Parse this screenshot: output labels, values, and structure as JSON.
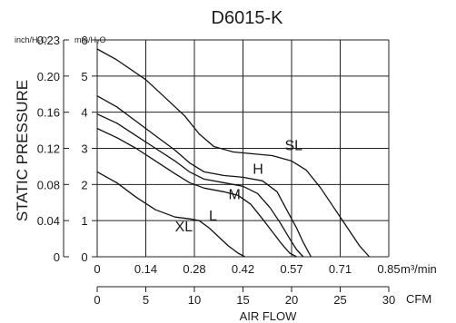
{
  "chart_data": {
    "type": "line",
    "title": "D6015-K",
    "xlabel": "AIR FLOW",
    "ylabel": "STATIC PRESSURE",
    "unit_inch": "inch/H₂O",
    "unit_mm": "mm/H₂O",
    "unit_m3": "m³/min",
    "unit_cfm": "CFM",
    "x_m3_ticks": [
      "0",
      "0.14",
      "0.28",
      "0.42",
      "0.57",
      "0.71",
      "0.85"
    ],
    "x_cfm_ticks": [
      "0",
      "5",
      "10",
      "15",
      "20",
      "25",
      "30"
    ],
    "y_mm_ticks": [
      "0",
      "1",
      "2",
      "3",
      "4",
      "5",
      "6"
    ],
    "y_inch_ticks": [
      "0",
      "0.04",
      "0.08",
      "0.12",
      "0.16",
      "0.20",
      "0.23"
    ],
    "xlim_cfm": [
      0,
      30
    ],
    "ylim_mm": [
      0,
      6
    ],
    "grid": true,
    "series": [
      {
        "name": "SL",
        "x": [
          0,
          2,
          5,
          7,
          9,
          10.5,
          12,
          14,
          16,
          18,
          20,
          21.5,
          23,
          24.5,
          26,
          27,
          28
        ],
        "y": [
          5.75,
          5.45,
          4.9,
          4.4,
          3.9,
          3.4,
          3.05,
          2.9,
          2.85,
          2.8,
          2.65,
          2.4,
          1.9,
          1.3,
          0.7,
          0.3,
          0
        ]
      },
      {
        "name": "H",
        "x": [
          0,
          2,
          4,
          6,
          8,
          9.5,
          11,
          13,
          15,
          17,
          18.5,
          19.5,
          20.5,
          21.2,
          22
        ],
        "y": [
          4.45,
          4.15,
          3.75,
          3.35,
          2.95,
          2.6,
          2.35,
          2.25,
          2.2,
          2.1,
          1.8,
          1.3,
          0.8,
          0.4,
          0
        ]
      },
      {
        "name": "M",
        "x": [
          0,
          2,
          4,
          6,
          8,
          9.5,
          11,
          13,
          15,
          16.5,
          17.8,
          18.8,
          19.8,
          20.5,
          21.2
        ],
        "y": [
          3.95,
          3.7,
          3.35,
          3.0,
          2.65,
          2.35,
          2.15,
          2.05,
          1.95,
          1.75,
          1.35,
          0.95,
          0.5,
          0.2,
          0
        ]
      },
      {
        "name": "L",
        "x": [
          0,
          2,
          4,
          6,
          8,
          9.5,
          11,
          13,
          14.5,
          15.8,
          17,
          18,
          19,
          19.8,
          20.5
        ],
        "y": [
          3.55,
          3.3,
          3.0,
          2.65,
          2.3,
          2.05,
          1.9,
          1.8,
          1.7,
          1.45,
          1.05,
          0.7,
          0.35,
          0.1,
          0
        ]
      },
      {
        "name": "XL",
        "x": [
          0,
          2,
          4,
          6,
          8,
          9.5,
          10.5,
          11.5,
          12.5,
          13.5,
          14.5,
          15.2
        ],
        "y": [
          2.35,
          2.05,
          1.65,
          1.3,
          1.1,
          1.05,
          1.0,
          0.8,
          0.55,
          0.3,
          0.1,
          0
        ]
      }
    ],
    "labels": [
      {
        "text": "SL",
        "x": 19.3,
        "y": 2.95
      },
      {
        "text": "H",
        "x": 16.0,
        "y": 2.3
      },
      {
        "text": "M",
        "x": 13.5,
        "y": 1.6
      },
      {
        "text": "L",
        "x": 11.5,
        "y": 1.0
      },
      {
        "text": "XL",
        "x": 8.0,
        "y": 0.7
      }
    ]
  }
}
